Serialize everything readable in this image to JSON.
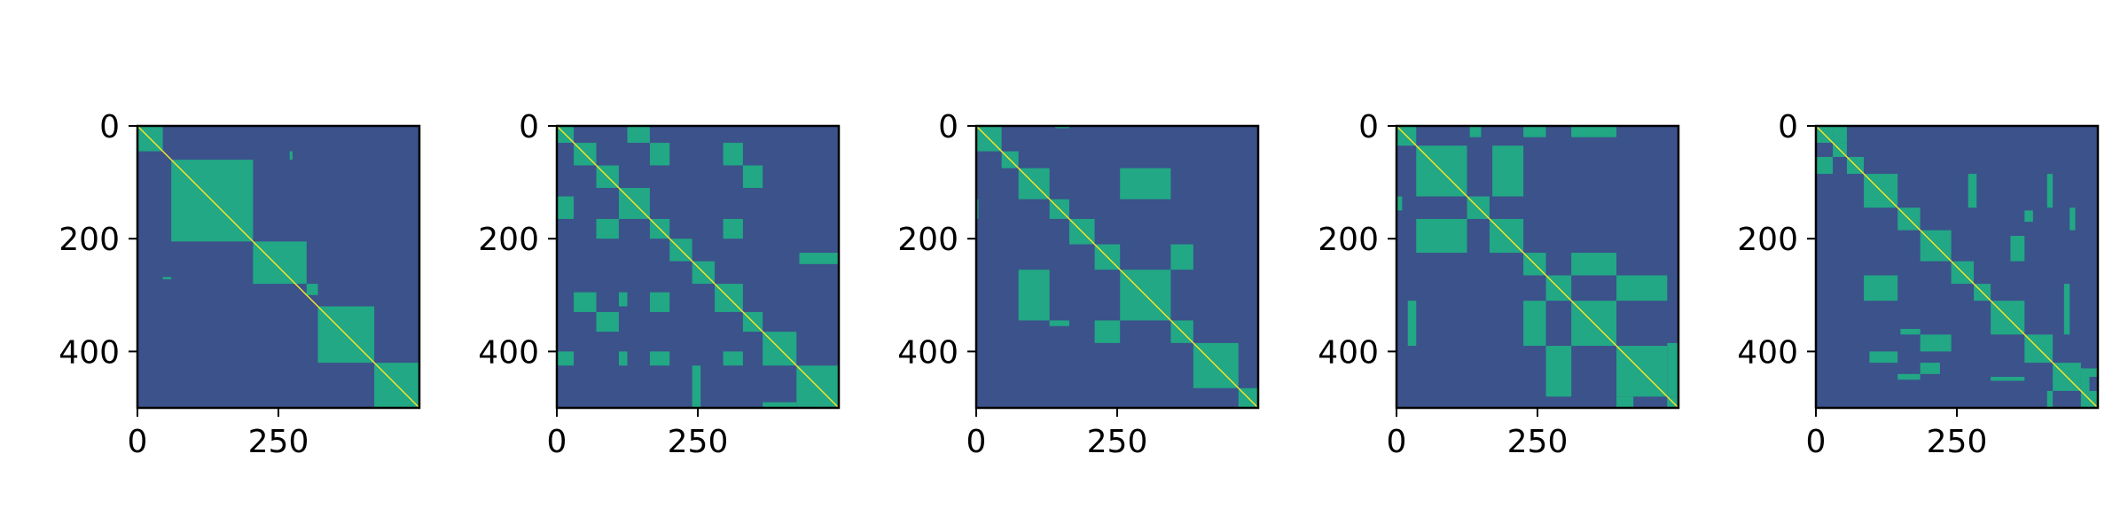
{
  "colors": {
    "background": "#3b528b",
    "block": "#22a884",
    "diagonal": "#fde725",
    "axis": "#000000"
  },
  "chart_data": [
    {
      "type": "heatmap",
      "title": "",
      "xlabel": "",
      "ylabel": "",
      "xlim": [
        0,
        500
      ],
      "ylim": [
        500,
        0
      ],
      "x_ticks": [
        {
          "value": 0,
          "label": "0"
        },
        {
          "value": 250,
          "label": "250"
        }
      ],
      "y_ticks": [
        {
          "value": 0,
          "label": "0"
        },
        {
          "value": 200,
          "label": "200"
        },
        {
          "value": 400,
          "label": "400"
        }
      ],
      "grid": false,
      "blocks": [
        {
          "x0": 0,
          "x1": 45,
          "y0": 0,
          "y1": 45
        },
        {
          "x0": 60,
          "x1": 205,
          "y0": 60,
          "y1": 205
        },
        {
          "x0": 270,
          "x1": 275,
          "y0": 45,
          "y1": 60
        },
        {
          "x0": 205,
          "x1": 300,
          "y0": 205,
          "y1": 280
        },
        {
          "x0": 205,
          "x1": 250,
          "y0": 225,
          "y1": 280
        },
        {
          "x0": 45,
          "x1": 60,
          "y0": 268,
          "y1": 272
        },
        {
          "x0": 300,
          "x1": 320,
          "y0": 280,
          "y1": 300
        },
        {
          "x0": 320,
          "x1": 420,
          "y0": 320,
          "y1": 420
        },
        {
          "x0": 420,
          "x1": 500,
          "y0": 420,
          "y1": 500
        }
      ]
    },
    {
      "type": "heatmap",
      "title": "",
      "xlabel": "",
      "ylabel": "",
      "xlim": [
        0,
        500
      ],
      "ylim": [
        500,
        0
      ],
      "x_ticks": [
        {
          "value": 0,
          "label": "0"
        },
        {
          "value": 250,
          "label": "250"
        }
      ],
      "y_ticks": [
        {
          "value": 0,
          "label": "0"
        },
        {
          "value": 200,
          "label": "200"
        },
        {
          "value": 400,
          "label": "400"
        }
      ],
      "grid": false,
      "blocks": [
        {
          "x0": 0,
          "x1": 30,
          "y0": 0,
          "y1": 30
        },
        {
          "x0": 30,
          "x1": 70,
          "y0": 30,
          "y1": 70
        },
        {
          "x0": 70,
          "x1": 110,
          "y0": 70,
          "y1": 110
        },
        {
          "x0": 110,
          "x1": 165,
          "y0": 110,
          "y1": 165
        },
        {
          "x0": 165,
          "x1": 200,
          "y0": 165,
          "y1": 200
        },
        {
          "x0": 200,
          "x1": 240,
          "y0": 200,
          "y1": 240
        },
        {
          "x0": 240,
          "x1": 280,
          "y0": 240,
          "y1": 280
        },
        {
          "x0": 280,
          "x1": 330,
          "y0": 280,
          "y1": 330
        },
        {
          "x0": 330,
          "x1": 365,
          "y0": 330,
          "y1": 365
        },
        {
          "x0": 365,
          "x1": 425,
          "y0": 365,
          "y1": 425
        },
        {
          "x0": 425,
          "x1": 500,
          "y0": 425,
          "y1": 500
        },
        {
          "x0": 125,
          "x1": 165,
          "y0": 0,
          "y1": 30
        },
        {
          "x0": 165,
          "x1": 200,
          "y0": 30,
          "y1": 70
        },
        {
          "x0": 295,
          "x1": 330,
          "y0": 30,
          "y1": 70
        },
        {
          "x0": 330,
          "x1": 365,
          "y0": 70,
          "y1": 110
        },
        {
          "x0": 0,
          "x1": 30,
          "y0": 125,
          "y1": 165
        },
        {
          "x0": 70,
          "x1": 110,
          "y0": 165,
          "y1": 200
        },
        {
          "x0": 295,
          "x1": 330,
          "y0": 165,
          "y1": 200
        },
        {
          "x0": 430,
          "x1": 500,
          "y0": 225,
          "y1": 245
        },
        {
          "x0": 30,
          "x1": 70,
          "y0": 295,
          "y1": 330
        },
        {
          "x0": 110,
          "x1": 125,
          "y0": 295,
          "y1": 320
        },
        {
          "x0": 165,
          "x1": 200,
          "y0": 295,
          "y1": 330
        },
        {
          "x0": 70,
          "x1": 110,
          "y0": 330,
          "y1": 365
        },
        {
          "x0": 0,
          "x1": 30,
          "y0": 400,
          "y1": 425
        },
        {
          "x0": 110,
          "x1": 125,
          "y0": 400,
          "y1": 425
        },
        {
          "x0": 165,
          "x1": 200,
          "y0": 400,
          "y1": 425
        },
        {
          "x0": 295,
          "x1": 330,
          "y0": 400,
          "y1": 425
        },
        {
          "x0": 240,
          "x1": 255,
          "y0": 425,
          "y1": 500
        },
        {
          "x0": 365,
          "x1": 425,
          "y0": 490,
          "y1": 500
        }
      ]
    },
    {
      "type": "heatmap",
      "title": "",
      "xlabel": "",
      "ylabel": "",
      "xlim": [
        0,
        500
      ],
      "ylim": [
        500,
        0
      ],
      "x_ticks": [
        {
          "value": 0,
          "label": "0"
        },
        {
          "value": 250,
          "label": "250"
        }
      ],
      "y_ticks": [
        {
          "value": 0,
          "label": "0"
        },
        {
          "value": 200,
          "label": "200"
        },
        {
          "value": 400,
          "label": "400"
        }
      ],
      "grid": false,
      "blocks": [
        {
          "x0": 0,
          "x1": 45,
          "y0": 0,
          "y1": 45
        },
        {
          "x0": 45,
          "x1": 75,
          "y0": 45,
          "y1": 75
        },
        {
          "x0": 75,
          "x1": 130,
          "y0": 75,
          "y1": 130
        },
        {
          "x0": 130,
          "x1": 165,
          "y0": 130,
          "y1": 165
        },
        {
          "x0": 165,
          "x1": 210,
          "y0": 165,
          "y1": 210
        },
        {
          "x0": 210,
          "x1": 255,
          "y0": 210,
          "y1": 255
        },
        {
          "x0": 255,
          "x1": 345,
          "y0": 255,
          "y1": 345
        },
        {
          "x0": 345,
          "x1": 385,
          "y0": 345,
          "y1": 385
        },
        {
          "x0": 385,
          "x1": 465,
          "y0": 385,
          "y1": 465
        },
        {
          "x0": 465,
          "x1": 500,
          "y0": 465,
          "y1": 500
        },
        {
          "x0": 255,
          "x1": 345,
          "y0": 75,
          "y1": 130
        },
        {
          "x0": 345,
          "x1": 385,
          "y0": 210,
          "y1": 255
        },
        {
          "x0": 75,
          "x1": 130,
          "y0": 255,
          "y1": 345
        },
        {
          "x0": 130,
          "x1": 165,
          "y0": 345,
          "y1": 355
        },
        {
          "x0": 210,
          "x1": 255,
          "y0": 345,
          "y1": 385
        },
        {
          "x0": 140,
          "x1": 165,
          "y0": 0,
          "y1": 4
        },
        {
          "x0": 0,
          "x1": 4,
          "y0": 130,
          "y1": 165
        }
      ]
    },
    {
      "type": "heatmap",
      "title": "",
      "xlabel": "",
      "ylabel": "",
      "xlim": [
        0,
        500
      ],
      "ylim": [
        500,
        0
      ],
      "x_ticks": [
        {
          "value": 0,
          "label": "0"
        },
        {
          "value": 250,
          "label": "250"
        }
      ],
      "y_ticks": [
        {
          "value": 0,
          "label": "0"
        },
        {
          "value": 200,
          "label": "200"
        },
        {
          "value": 400,
          "label": "400"
        }
      ],
      "grid": false,
      "blocks": [
        {
          "x0": 0,
          "x1": 35,
          "y0": 0,
          "y1": 35
        },
        {
          "x0": 35,
          "x1": 125,
          "y0": 35,
          "y1": 125
        },
        {
          "x0": 125,
          "x1": 165,
          "y0": 125,
          "y1": 165
        },
        {
          "x0": 165,
          "x1": 225,
          "y0": 165,
          "y1": 225
        },
        {
          "x0": 225,
          "x1": 265,
          "y0": 225,
          "y1": 265
        },
        {
          "x0": 265,
          "x1": 310,
          "y0": 265,
          "y1": 310
        },
        {
          "x0": 310,
          "x1": 390,
          "y0": 310,
          "y1": 390
        },
        {
          "x0": 390,
          "x1": 480,
          "y0": 390,
          "y1": 480
        },
        {
          "x0": 480,
          "x1": 500,
          "y0": 480,
          "y1": 500
        },
        {
          "x0": 130,
          "x1": 150,
          "y0": 0,
          "y1": 20
        },
        {
          "x0": 225,
          "x1": 265,
          "y0": 0,
          "y1": 20
        },
        {
          "x0": 310,
          "x1": 390,
          "y0": 0,
          "y1": 20
        },
        {
          "x0": 170,
          "x1": 225,
          "y0": 35,
          "y1": 125
        },
        {
          "x0": 35,
          "x1": 125,
          "y0": 165,
          "y1": 225
        },
        {
          "x0": 310,
          "x1": 390,
          "y0": 225,
          "y1": 265
        },
        {
          "x0": 390,
          "x1": 480,
          "y0": 265,
          "y1": 310
        },
        {
          "x0": 0,
          "x1": 10,
          "y0": 125,
          "y1": 150
        },
        {
          "x0": 20,
          "x1": 35,
          "y0": 310,
          "y1": 390
        },
        {
          "x0": 225,
          "x1": 265,
          "y0": 310,
          "y1": 390
        },
        {
          "x0": 265,
          "x1": 310,
          "y0": 390,
          "y1": 480
        },
        {
          "x0": 480,
          "x1": 500,
          "y0": 385,
          "y1": 480
        },
        {
          "x0": 390,
          "x1": 420,
          "y0": 480,
          "y1": 500
        }
      ]
    },
    {
      "type": "heatmap",
      "title": "",
      "xlabel": "",
      "ylabel": "",
      "xlim": [
        0,
        500
      ],
      "ylim": [
        500,
        0
      ],
      "x_ticks": [
        {
          "value": 0,
          "label": "0"
        },
        {
          "value": 250,
          "label": "250"
        }
      ],
      "y_ticks": [
        {
          "value": 0,
          "label": "0"
        },
        {
          "value": 200,
          "label": "200"
        },
        {
          "value": 400,
          "label": "400"
        }
      ],
      "grid": false,
      "blocks": [
        {
          "x0": 0,
          "x1": 30,
          "y0": 0,
          "y1": 30
        },
        {
          "x0": 30,
          "x1": 55,
          "y0": 30,
          "y1": 55
        },
        {
          "x0": 55,
          "x1": 85,
          "y0": 55,
          "y1": 85
        },
        {
          "x0": 85,
          "x1": 145,
          "y0": 85,
          "y1": 145
        },
        {
          "x0": 145,
          "x1": 185,
          "y0": 145,
          "y1": 185
        },
        {
          "x0": 185,
          "x1": 240,
          "y0": 185,
          "y1": 240
        },
        {
          "x0": 240,
          "x1": 280,
          "y0": 240,
          "y1": 280
        },
        {
          "x0": 280,
          "x1": 310,
          "y0": 280,
          "y1": 310
        },
        {
          "x0": 310,
          "x1": 370,
          "y0": 310,
          "y1": 370
        },
        {
          "x0": 370,
          "x1": 420,
          "y0": 370,
          "y1": 420
        },
        {
          "x0": 420,
          "x1": 470,
          "y0": 420,
          "y1": 470
        },
        {
          "x0": 470,
          "x1": 500,
          "y0": 470,
          "y1": 500
        },
        {
          "x0": 0,
          "x1": 30,
          "y0": 55,
          "y1": 85
        },
        {
          "x0": 30,
          "x1": 55,
          "y0": 0,
          "y1": 30
        },
        {
          "x0": 270,
          "x1": 285,
          "y0": 85,
          "y1": 145
        },
        {
          "x0": 410,
          "x1": 420,
          "y0": 85,
          "y1": 145
        },
        {
          "x0": 450,
          "x1": 460,
          "y0": 145,
          "y1": 185
        },
        {
          "x0": 370,
          "x1": 385,
          "y0": 150,
          "y1": 170
        },
        {
          "x0": 345,
          "x1": 370,
          "y0": 195,
          "y1": 240
        },
        {
          "x0": 85,
          "x1": 145,
          "y0": 265,
          "y1": 310
        },
        {
          "x0": 440,
          "x1": 450,
          "y0": 280,
          "y1": 370
        },
        {
          "x0": 150,
          "x1": 185,
          "y0": 360,
          "y1": 370
        },
        {
          "x0": 185,
          "x1": 240,
          "y0": 370,
          "y1": 400
        },
        {
          "x0": 95,
          "x1": 145,
          "y0": 400,
          "y1": 420
        },
        {
          "x0": 185,
          "x1": 220,
          "y0": 420,
          "y1": 440
        },
        {
          "x0": 145,
          "x1": 185,
          "y0": 440,
          "y1": 450
        },
        {
          "x0": 310,
          "x1": 370,
          "y0": 445,
          "y1": 452
        },
        {
          "x0": 420,
          "x1": 445,
          "y0": 445,
          "y1": 455
        },
        {
          "x0": 470,
          "x1": 500,
          "y0": 430,
          "y1": 445
        },
        {
          "x0": 470,
          "x1": 485,
          "y0": 445,
          "y1": 500
        },
        {
          "x0": 410,
          "x1": 420,
          "y0": 470,
          "y1": 500
        }
      ]
    }
  ]
}
